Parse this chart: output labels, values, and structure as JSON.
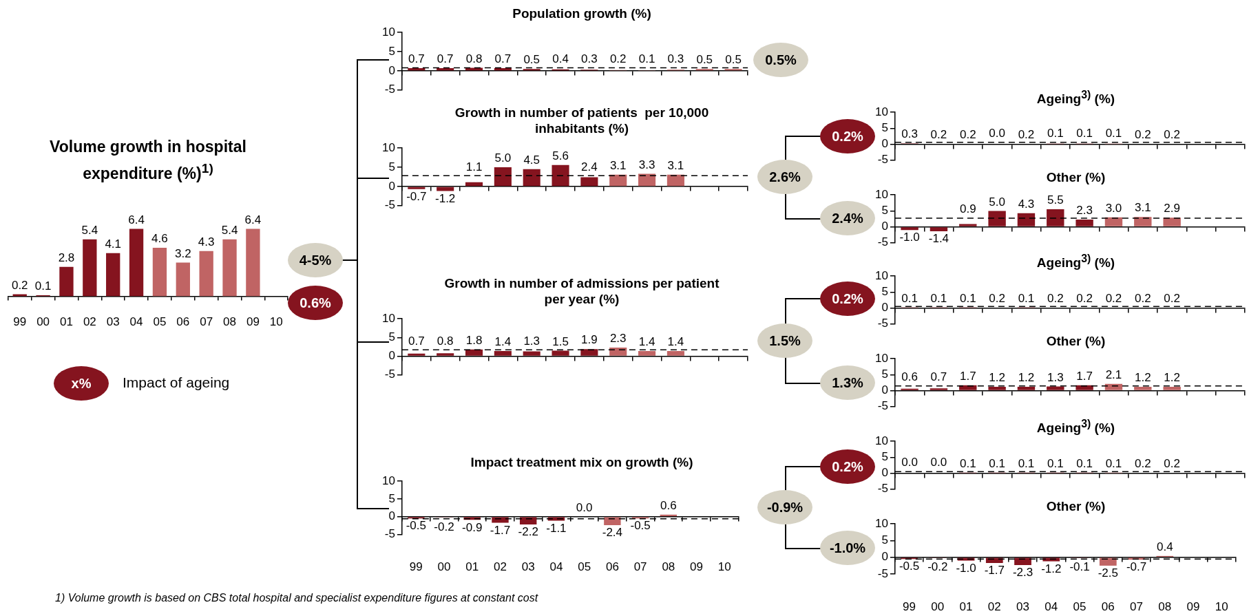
{
  "chart_data": [
    {
      "type": "bar",
      "title": "Volume growth in hospital expenditure (%)$^{1)}$",
      "categories": [
        "99",
        "00",
        "01",
        "02",
        "03",
        "04",
        "05",
        "06",
        "07",
        "08",
        "09",
        "10"
      ],
      "values": [
        0.2,
        0.1,
        2.8,
        5.4,
        4.1,
        6.4,
        4.6,
        3.2,
        4.3,
        5.4,
        6.4,
        null
      ],
      "value_labels": [
        "0.2",
        "0.1",
        "2.8",
        "5.4",
        "4.1",
        "6.4",
        "4.6",
        "3.2",
        "4.3",
        "5.4",
        "6.4",
        null
      ],
      "colors": [
        "#85141f",
        "#85141f",
        "#85141f",
        "#85141f",
        "#85141f",
        "#85141f",
        "#c06464",
        "#c06464",
        "#c06464",
        "#c06464",
        "#c06464",
        "#c06464"
      ],
      "annotations": [
        "4-5%",
        "0.6%",
        "x%",
        "Impact of ageing",
        "1) Volume growth is based on CBS total hospital and specialist expenditure figures at constant cost"
      ]
    },
    {
      "type": "bar",
      "title": "Population growth (%)",
      "categories": [
        "99",
        "00",
        "01",
        "02",
        "03",
        "04",
        "05",
        "06",
        "07",
        "08",
        "09",
        "10"
      ],
      "values": [
        0.7,
        0.7,
        0.8,
        0.7,
        0.5,
        0.4,
        0.3,
        0.2,
        0.1,
        0.3,
        0.5,
        0.5
      ],
      "value_labels": [
        "0.7",
        "0.7",
        "0.8",
        "0.7",
        "0.5",
        "0.4",
        "0.3",
        "0.2",
        "0.1",
        "0.3",
        "0.5",
        "0.5"
      ],
      "colors": [
        "#85141f",
        "#85141f",
        "#85141f",
        "#85141f",
        "#85141f",
        "#85141f",
        "#85141f",
        "#c06464",
        "#c06464",
        "#c06464",
        "#c06464",
        "#c06464"
      ],
      "ylim": [
        -5,
        10
      ],
      "yticks": [
        -5,
        0,
        5,
        10
      ],
      "tick_labels": "y",
      "ref_lines": [
        {
          "axis": "y",
          "value": 0.8,
          "color": "#000000",
          "line_style": "dashed"
        }
      ],
      "annotations": [
        "0.5%"
      ]
    },
    {
      "type": "bar",
      "title": "Growth in number of patients  per 10,000 inhabitants (%)",
      "categories": [
        "99",
        "00",
        "01",
        "02",
        "03",
        "04",
        "05",
        "06",
        "07",
        "08",
        "09",
        "10"
      ],
      "values": [
        -0.7,
        -1.2,
        1.1,
        5.0,
        4.5,
        5.6,
        2.4,
        3.1,
        3.3,
        3.1,
        null,
        null
      ],
      "value_labels": [
        "-0.7",
        "-1.2",
        "1.1",
        "5.0",
        "4.5",
        "5.6",
        "2.4",
        "3.1",
        "3.3",
        "3.1",
        null,
        null
      ],
      "colors": [
        "#85141f",
        "#85141f",
        "#85141f",
        "#85141f",
        "#85141f",
        "#85141f",
        "#85141f",
        "#c06464",
        "#c06464",
        "#c06464",
        "#c06464",
        "#c06464"
      ],
      "ylim": [
        -5,
        10
      ],
      "yticks": [
        -5,
        0,
        5,
        10
      ],
      "tick_labels": "y",
      "ref_lines": [
        {
          "axis": "y",
          "value": 2.8,
          "color": "#000000",
          "line_style": "dashed"
        }
      ],
      "annotations": [
        "2.6%"
      ]
    },
    {
      "type": "bar",
      "title": "Growth in number of admissions per patient per year (%)",
      "categories": [
        "99",
        "00",
        "01",
        "02",
        "03",
        "04",
        "05",
        "06",
        "07",
        "08",
        "09",
        "10"
      ],
      "values": [
        0.7,
        0.8,
        1.8,
        1.4,
        1.3,
        1.5,
        1.9,
        2.3,
        1.4,
        1.4,
        null,
        null
      ],
      "value_labels": [
        "0.7",
        "0.8",
        "1.8",
        "1.4",
        "1.3",
        "1.5",
        "1.9",
        "2.3",
        "1.4",
        "1.4",
        null,
        null
      ],
      "colors": [
        "#85141f",
        "#85141f",
        "#85141f",
        "#85141f",
        "#85141f",
        "#85141f",
        "#85141f",
        "#c06464",
        "#c06464",
        "#c06464",
        "#c06464",
        "#c06464"
      ],
      "ylim": [
        -5,
        10
      ],
      "yticks": [
        -5,
        0,
        5,
        10
      ],
      "tick_labels": "y",
      "ref_lines": [
        {
          "axis": "y",
          "value": 1.7,
          "color": "#000000",
          "line_style": "dashed"
        }
      ],
      "annotations": [
        "1.5%"
      ]
    },
    {
      "type": "bar",
      "title": "Impact treatment mix on growth (%)",
      "categories": [
        "99",
        "00",
        "01",
        "02",
        "03",
        "04",
        "05",
        "06",
        "07",
        "08",
        "09",
        "10"
      ],
      "values": [
        -0.5,
        -0.2,
        -0.9,
        -1.7,
        -2.2,
        -1.1,
        0.0,
        -2.4,
        -0.5,
        0.6,
        null,
        null
      ],
      "value_labels": [
        "-0.5",
        "-0.2",
        "-0.9",
        "-1.7",
        "-2.2",
        "-1.1",
        "0.0",
        "-2.4",
        "-0.5",
        "0.6",
        null,
        null
      ],
      "colors": [
        "#85141f",
        "#85141f",
        "#85141f",
        "#85141f",
        "#85141f",
        "#85141f",
        "#85141f",
        "#c06464",
        "#c06464",
        "#c06464",
        "#c06464",
        "#c06464"
      ],
      "ylim": [
        -5,
        10
      ],
      "yticks": [
        -5,
        0,
        5,
        10
      ],
      "ref_lines": [
        {
          "axis": "y",
          "value": -0.6,
          "color": "#000000",
          "line_style": "dashed"
        }
      ],
      "annotations": [
        "-0.9%"
      ]
    },
    {
      "type": "bar",
      "title": "Ageing$^{3)}$ (%)",
      "categories": [
        "99",
        "00",
        "01",
        "02",
        "03",
        "04",
        "05",
        "06",
        "07",
        "08",
        "09",
        "10"
      ],
      "values": [
        0.3,
        0.2,
        0.2,
        0.0,
        0.2,
        0.1,
        0.1,
        0.1,
        0.2,
        0.2,
        null,
        null
      ],
      "value_labels": [
        "0.3",
        "0.2",
        "0.2",
        "0.0",
        "0.2",
        "0.1",
        "0.1",
        "0.1",
        "0.2",
        "0.2",
        null,
        null
      ],
      "colors": [
        "#85141f",
        "#85141f",
        "#85141f",
        "#85141f",
        "#85141f",
        "#85141f",
        "#85141f",
        "#c06464",
        "#c06464",
        "#c06464",
        "#c06464",
        "#c06464"
      ],
      "ylim": [
        -5,
        10
      ],
      "yticks": [
        -5,
        0,
        5,
        10
      ],
      "tick_labels": "y",
      "ref_lines": [
        {
          "axis": "y",
          "value": 0.6,
          "color": "#000000",
          "line_style": "dashed"
        }
      ],
      "annotations": [
        "0.2%"
      ]
    },
    {
      "type": "bar",
      "title": "Other (%)",
      "categories": [
        "99",
        "00",
        "01",
        "02",
        "03",
        "04",
        "05",
        "06",
        "07",
        "08",
        "09",
        "10"
      ],
      "values": [
        -1.0,
        -1.4,
        0.9,
        5.0,
        4.3,
        5.5,
        2.3,
        3.0,
        3.1,
        2.9,
        null,
        null
      ],
      "value_labels": [
        "-1.0",
        "-1.4",
        "0.9",
        "5.0",
        "4.3",
        "5.5",
        "2.3",
        "3.0",
        "3.1",
        "2.9",
        null,
        null
      ],
      "colors": [
        "#85141f",
        "#85141f",
        "#85141f",
        "#85141f",
        "#85141f",
        "#85141f",
        "#85141f",
        "#c06464",
        "#c06464",
        "#c06464",
        "#c06464",
        "#c06464"
      ],
      "ylim": [
        -5,
        10
      ],
      "yticks": [
        -5,
        0,
        5,
        10
      ],
      "tick_labels": "y",
      "ref_lines": [
        {
          "axis": "y",
          "value": 2.7,
          "color": "#000000",
          "line_style": "dashed"
        }
      ],
      "annotations": [
        "2.4%"
      ]
    },
    {
      "type": "bar",
      "title": "Ageing$^{3)}$ (%)",
      "categories": [
        "99",
        "00",
        "01",
        "02",
        "03",
        "04",
        "05",
        "06",
        "07",
        "08",
        "09",
        "10"
      ],
      "values": [
        0.1,
        0.1,
        0.1,
        0.2,
        0.1,
        0.2,
        0.2,
        0.2,
        0.2,
        0.2,
        null,
        null
      ],
      "value_labels": [
        "0.1",
        "0.1",
        "0.1",
        "0.2",
        "0.1",
        "0.2",
        "0.2",
        "0.2",
        "0.2",
        "0.2",
        null,
        null
      ],
      "colors": [
        "#85141f",
        "#85141f",
        "#85141f",
        "#85141f",
        "#85141f",
        "#85141f",
        "#85141f",
        "#c06464",
        "#c06464",
        "#c06464",
        "#c06464",
        "#c06464"
      ],
      "ylim": [
        -5,
        10
      ],
      "yticks": [
        -5,
        0,
        5,
        10
      ],
      "tick_labels": "y",
      "ref_lines": [
        {
          "axis": "y",
          "value": 0.5,
          "color": "#000000",
          "line_style": "dashed"
        }
      ],
      "annotations": [
        "0.2%"
      ]
    },
    {
      "type": "bar",
      "title": "Other (%)",
      "categories": [
        "99",
        "00",
        "01",
        "02",
        "03",
        "04",
        "05",
        "06",
        "07",
        "08",
        "09",
        "10"
      ],
      "values": [
        0.6,
        0.7,
        1.7,
        1.2,
        1.2,
        1.3,
        1.7,
        2.1,
        1.2,
        1.2,
        null,
        null
      ],
      "value_labels": [
        "0.6",
        "0.7",
        "1.7",
        "1.2",
        "1.2",
        "1.3",
        "1.7",
        "2.1",
        "1.2",
        "1.2",
        null,
        null
      ],
      "colors": [
        "#85141f",
        "#85141f",
        "#85141f",
        "#85141f",
        "#85141f",
        "#85141f",
        "#85141f",
        "#c06464",
        "#c06464",
        "#c06464",
        "#c06464",
        "#c06464"
      ],
      "ylim": [
        -5,
        10
      ],
      "yticks": [
        -5,
        0,
        5,
        10
      ],
      "tick_labels": "y",
      "ref_lines": [
        {
          "axis": "y",
          "value": 1.5,
          "color": "#000000",
          "line_style": "dashed"
        }
      ],
      "annotations": [
        "1.3%"
      ]
    },
    {
      "type": "bar",
      "title": "Ageing$^{3)}$ (%)",
      "categories": [
        "99",
        "00",
        "01",
        "02",
        "03",
        "04",
        "05",
        "06",
        "07",
        "08",
        "09",
        "10"
      ],
      "values": [
        0.0,
        0.0,
        0.1,
        0.1,
        0.1,
        0.1,
        0.1,
        0.1,
        0.2,
        0.2,
        null,
        null
      ],
      "value_labels": [
        "0.0",
        "0.0",
        "0.1",
        "0.1",
        "0.1",
        "0.1",
        "0.1",
        "0.1",
        "0.2",
        "0.2",
        null,
        null
      ],
      "colors": [
        "#85141f",
        "#85141f",
        "#85141f",
        "#85141f",
        "#85141f",
        "#85141f",
        "#85141f",
        "#c06464",
        "#c06464",
        "#c06464",
        "#c06464",
        "#c06464"
      ],
      "ylim": [
        -5,
        10
      ],
      "yticks": [
        -5,
        0,
        5,
        10
      ],
      "tick_labels": "y",
      "ref_lines": [
        {
          "axis": "y",
          "value": 0.5,
          "color": "#000000",
          "line_style": "dashed"
        }
      ],
      "annotations": [
        "0.2%"
      ]
    },
    {
      "type": "bar",
      "title": "Other (%)",
      "categories": [
        "99",
        "00",
        "01",
        "02",
        "03",
        "04",
        "05",
        "06",
        "07",
        "08",
        "09",
        "10"
      ],
      "values": [
        -0.5,
        -0.2,
        -1.0,
        -1.7,
        -2.3,
        -1.2,
        -0.1,
        -2.5,
        -0.7,
        0.4,
        null,
        null
      ],
      "value_labels": [
        "-0.5",
        "-0.2",
        "-1.0",
        "-1.7",
        "-2.3",
        "-1.2",
        "-0.1",
        "-2.5",
        "-0.7",
        "0.4",
        null,
        null
      ],
      "colors": [
        "#85141f",
        "#85141f",
        "#85141f",
        "#85141f",
        "#85141f",
        "#85141f",
        "#85141f",
        "#c06464",
        "#c06464",
        "#c06464",
        "#c06464",
        "#c06464"
      ],
      "ylim": [
        -5,
        10
      ],
      "yticks": [
        -5,
        0,
        5,
        10
      ],
      "ref_lines": [
        {
          "axis": "y",
          "value": -0.5,
          "color": "#000000",
          "line_style": "dashed"
        }
      ],
      "annotations": [
        "-1.0%"
      ]
    }
  ]
}
